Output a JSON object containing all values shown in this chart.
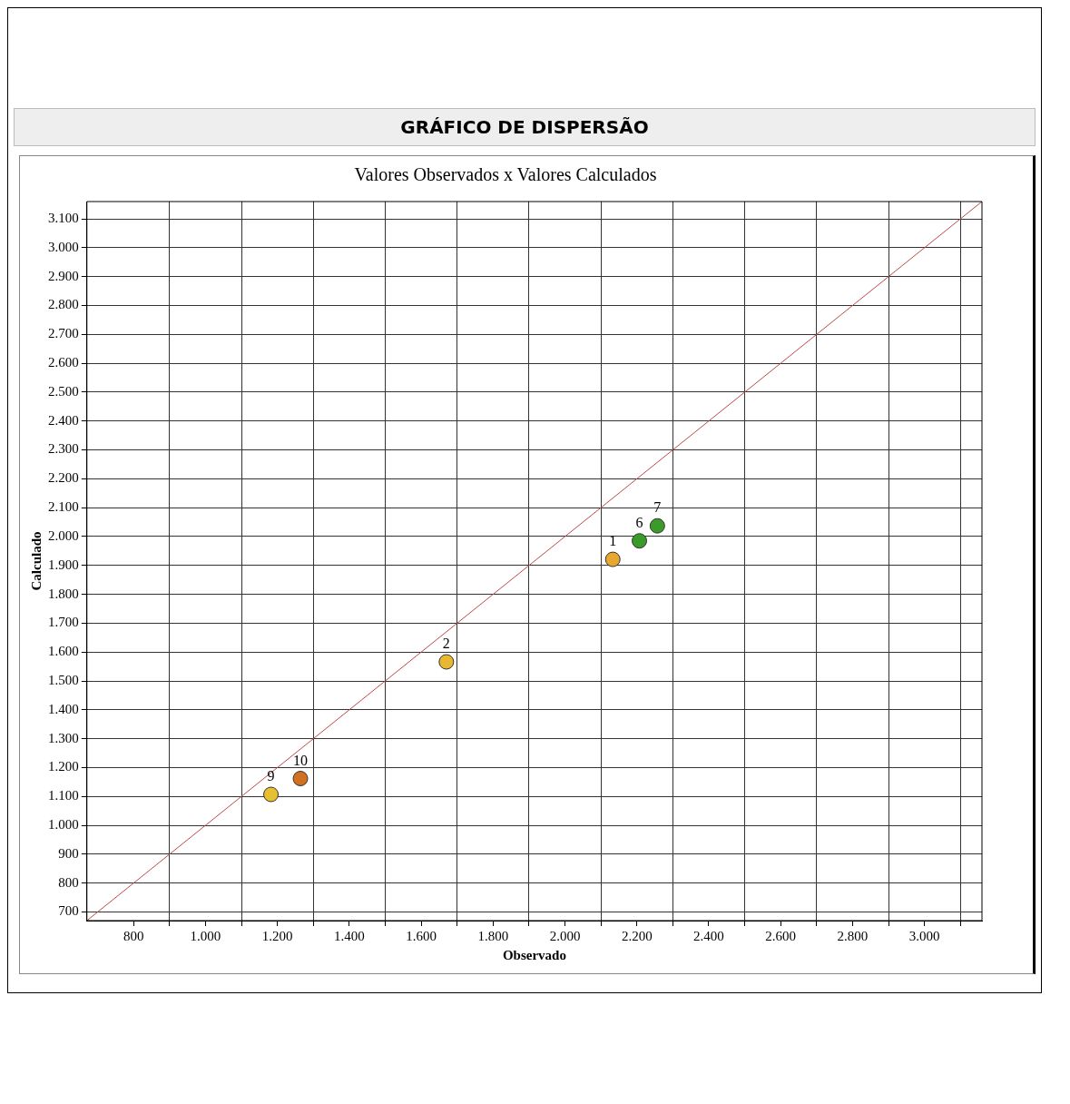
{
  "chart_data": {
    "type": "scatter",
    "title": "GRÁFICO DE DISPERSÃO",
    "subtitle": "Valores Observados x Valores Calculados",
    "xlabel": "Observado",
    "ylabel": "Calculado",
    "xlim": [
      670,
      3160
    ],
    "ylim": [
      670,
      3160
    ],
    "xticks": [
      {
        "value": 800,
        "label": "800"
      },
      {
        "value": 900,
        "label": null
      },
      {
        "value": 1000,
        "label": "1.000"
      },
      {
        "value": 1100,
        "label": null
      },
      {
        "value": 1200,
        "label": "1.200"
      },
      {
        "value": 1300,
        "label": null
      },
      {
        "value": 1400,
        "label": "1.400"
      },
      {
        "value": 1500,
        "label": null
      },
      {
        "value": 1600,
        "label": "1.600"
      },
      {
        "value": 1700,
        "label": null
      },
      {
        "value": 1800,
        "label": "1.800"
      },
      {
        "value": 1900,
        "label": null
      },
      {
        "value": 2000,
        "label": "2.000"
      },
      {
        "value": 2100,
        "label": null
      },
      {
        "value": 2200,
        "label": "2.200"
      },
      {
        "value": 2300,
        "label": null
      },
      {
        "value": 2400,
        "label": "2.400"
      },
      {
        "value": 2500,
        "label": null
      },
      {
        "value": 2600,
        "label": "2.600"
      },
      {
        "value": 2700,
        "label": null
      },
      {
        "value": 2800,
        "label": "2.800"
      },
      {
        "value": 2900,
        "label": null
      },
      {
        "value": 3000,
        "label": "3.000"
      },
      {
        "value": 3100,
        "label": null
      }
    ],
    "yticks": [
      700,
      800,
      900,
      {
        "value": 1000,
        "label": "1.000"
      },
      {
        "value": 1100,
        "label": "1.100"
      },
      {
        "value": 1200,
        "label": "1.200"
      },
      {
        "value": 1300,
        "label": "1.300"
      },
      {
        "value": 1400,
        "label": "1.400"
      },
      {
        "value": 1500,
        "label": "1.500"
      },
      {
        "value": 1600,
        "label": "1.600"
      },
      {
        "value": 1700,
        "label": "1.700"
      },
      {
        "value": 1800,
        "label": "1.800"
      },
      {
        "value": 1900,
        "label": "1.900"
      },
      {
        "value": 2000,
        "label": "2.000"
      },
      {
        "value": 2100,
        "label": "2.100"
      },
      {
        "value": 2200,
        "label": "2.200"
      },
      {
        "value": 2300,
        "label": "2.300"
      },
      {
        "value": 2400,
        "label": "2.400"
      },
      {
        "value": 2500,
        "label": "2.500"
      },
      {
        "value": 2600,
        "label": "2.600"
      },
      {
        "value": 2700,
        "label": "2.700"
      },
      {
        "value": 2800,
        "label": "2.800"
      },
      {
        "value": 2900,
        "label": "2.900"
      },
      {
        "value": 3000,
        "label": "3.000"
      },
      {
        "value": 3100,
        "label": "3.100"
      }
    ],
    "grid": true,
    "legend": false,
    "marker": "circle",
    "series": [
      {
        "type": "line",
        "marker": "none",
        "color": "#c04848",
        "x": [
          670,
          3160
        ],
        "values": [
          670,
          3160
        ]
      },
      {
        "x": [
          2133,
          1670,
          2207,
          2257,
          1182,
          1264
        ],
        "values": [
          1921,
          1566,
          1985,
          2037,
          1107,
          1162
        ],
        "colors": [
          "#e8a830",
          "#e8b830",
          "#3a9a2a",
          "#3a9a2a",
          "#e6c030",
          "#d07020"
        ]
      }
    ],
    "annotations": [
      {
        "text": "1",
        "x": 2133,
        "y": 1921
      },
      {
        "text": "2",
        "x": 1670,
        "y": 1566
      },
      {
        "text": "6",
        "x": 2207,
        "y": 1985
      },
      {
        "text": "7",
        "x": 2257,
        "y": 2037
      },
      {
        "text": "9",
        "x": 1182,
        "y": 1107
      },
      {
        "text": "10",
        "x": 1264,
        "y": 1162
      }
    ]
  }
}
